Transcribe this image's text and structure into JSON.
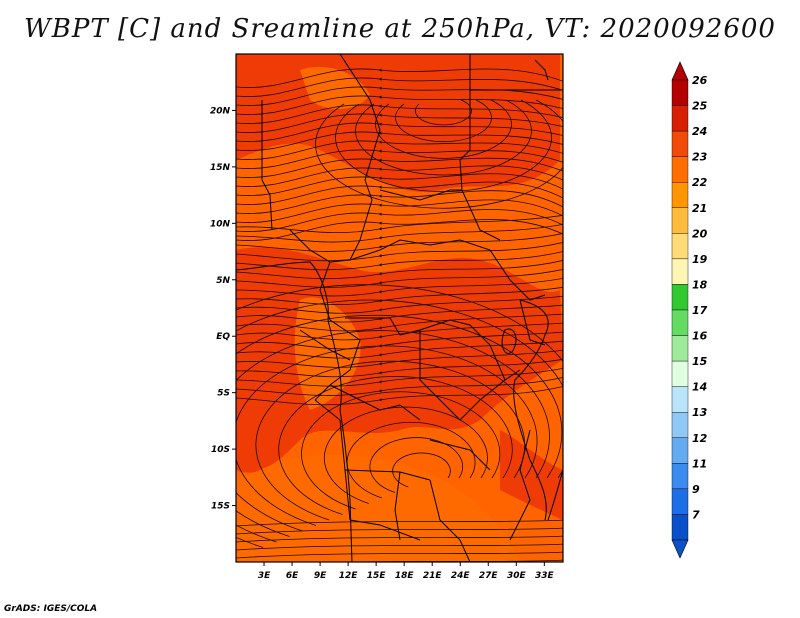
{
  "title": "WBPT [C] and Sreamline at 250hPa, VT: 2020092600",
  "credit": "GrADS: IGES/COLA",
  "map": {
    "lon_range": [
      0,
      35
    ],
    "lat_range": [
      -20,
      25
    ],
    "lon_ticks": [
      "3E",
      "6E",
      "9E",
      "12E",
      "15E",
      "18E",
      "21E",
      "24E",
      "27E",
      "30E",
      "33E"
    ],
    "lon_tick_values": [
      3,
      6,
      9,
      12,
      15,
      18,
      21,
      24,
      27,
      30,
      33
    ],
    "lat_ticks": [
      "20N",
      "15N",
      "10N",
      "5N",
      "EQ",
      "5S",
      "10S",
      "15S"
    ],
    "lat_tick_values": [
      20,
      15,
      10,
      5,
      0,
      -5,
      -10,
      -15
    ],
    "fill_colors": {
      "level_23": "#ff6400",
      "level_24": "#ef3c06",
      "level_22": "#ff7f00"
    }
  },
  "colorbar": {
    "labels": [
      "26",
      "25",
      "24",
      "23",
      "22",
      "21",
      "20",
      "19",
      "18",
      "17",
      "16",
      "15",
      "14",
      "13",
      "12",
      "11",
      "9",
      "7"
    ],
    "colors": [
      "#b40000",
      "#d81e05",
      "#f04b08",
      "#ff6e00",
      "#ff9600",
      "#ffbb3c",
      "#ffdb78",
      "#fff5b4",
      "#32c832",
      "#64dc64",
      "#a0eb9b",
      "#e0ffe0",
      "#bae4fa",
      "#90c8f5",
      "#64aaf0",
      "#3c8cf0",
      "#1e6ee6",
      "#0a50c8"
    ]
  }
}
